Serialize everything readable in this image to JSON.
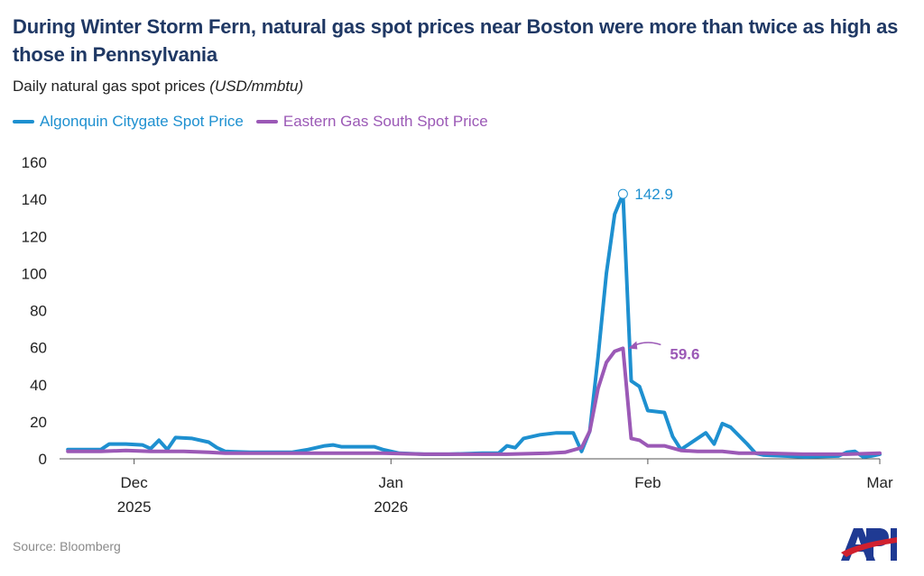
{
  "header": {
    "title": "During Winter Storm Fern, natural gas spot prices near Boston were more than twice as high as those in Pennsylvania",
    "subtitle": "Daily natural gas spot prices",
    "subtitle_unit": "(USD/mmbtu)"
  },
  "footer": {
    "source": "Source: Bloomberg",
    "logo_text": "API"
  },
  "colors": {
    "algonquin": "#1e90d0",
    "eastern": "#9b59b6",
    "axis": "#555555",
    "logo_blue": "#1f3a93",
    "logo_red": "#d0202e"
  },
  "chart_data": {
    "type": "line",
    "title": "During Winter Storm Fern, natural gas spot prices near Boston were more than twice as high as those in Pennsylvania",
    "ylim": [
      0,
      160
    ],
    "yticks": [
      0,
      20,
      40,
      60,
      80,
      100,
      120,
      140,
      160
    ],
    "x_range": [
      "2025-11-22",
      "2026-03-01"
    ],
    "xticks": [
      {
        "date": "2025-12-01",
        "label1": "Dec",
        "label2": "2025"
      },
      {
        "date": "2026-01-01",
        "label1": "Jan",
        "label2": "2026"
      },
      {
        "date": "2026-02-01",
        "label1": "Feb",
        "label2": ""
      },
      {
        "date": "2026-03-01",
        "label1": "Mar",
        "label2": ""
      }
    ],
    "grid": false,
    "legend_position": "top-left",
    "series": [
      {
        "name": "Algonquin Citygate Spot Price",
        "color": "#1e90d0",
        "points": [
          [
            "2025-11-23",
            5
          ],
          [
            "2025-11-27",
            5
          ],
          [
            "2025-11-28",
            8
          ],
          [
            "2025-11-30",
            8
          ],
          [
            "2025-12-02",
            7.5
          ],
          [
            "2025-12-03",
            5.5
          ],
          [
            "2025-12-04",
            10
          ],
          [
            "2025-12-05",
            5
          ],
          [
            "2025-12-06",
            11.5
          ],
          [
            "2025-12-08",
            11
          ],
          [
            "2025-12-10",
            9
          ],
          [
            "2025-12-11",
            6
          ],
          [
            "2025-12-12",
            4
          ],
          [
            "2025-12-15",
            3.5
          ],
          [
            "2025-12-20",
            3.5
          ],
          [
            "2025-12-22",
            5
          ],
          [
            "2025-12-24",
            7
          ],
          [
            "2025-12-25",
            7.5
          ],
          [
            "2025-12-26",
            6.5
          ],
          [
            "2025-12-30",
            6.5
          ],
          [
            "2025-12-31",
            5
          ],
          [
            "2026-01-02",
            3
          ],
          [
            "2026-01-05",
            2.5
          ],
          [
            "2026-01-08",
            2.5
          ],
          [
            "2026-01-12",
            3
          ],
          [
            "2026-01-14",
            3
          ],
          [
            "2026-01-15",
            7
          ],
          [
            "2026-01-16",
            6
          ],
          [
            "2026-01-17",
            11
          ],
          [
            "2026-01-19",
            13
          ],
          [
            "2026-01-21",
            14
          ],
          [
            "2026-01-23",
            14
          ],
          [
            "2026-01-24",
            4
          ],
          [
            "2026-01-25",
            15
          ],
          [
            "2026-01-26",
            55
          ],
          [
            "2026-01-27",
            100
          ],
          [
            "2026-01-28",
            132
          ],
          [
            "2026-01-29",
            142.9
          ],
          [
            "2026-01-30",
            42
          ],
          [
            "2026-01-31",
            39
          ],
          [
            "2026-02-01",
            26
          ],
          [
            "2026-02-03",
            25
          ],
          [
            "2026-02-04",
            12
          ],
          [
            "2026-02-05",
            5
          ],
          [
            "2026-02-06",
            8
          ],
          [
            "2026-02-08",
            14
          ],
          [
            "2026-02-09",
            8
          ],
          [
            "2026-02-10",
            19
          ],
          [
            "2026-02-11",
            17
          ],
          [
            "2026-02-13",
            8
          ],
          [
            "2026-02-14",
            3
          ],
          [
            "2026-02-15",
            2
          ],
          [
            "2026-02-20",
            1
          ],
          [
            "2026-02-24",
            1.5
          ],
          [
            "2026-02-25",
            3.5
          ],
          [
            "2026-02-26",
            4
          ],
          [
            "2026-02-27",
            1
          ],
          [
            "2026-02-28",
            1.5
          ],
          [
            "2026-03-01",
            2.5
          ]
        ]
      },
      {
        "name": "Eastern Gas South Spot Price",
        "color": "#9b59b6",
        "points": [
          [
            "2025-11-23",
            4
          ],
          [
            "2025-11-27",
            4
          ],
          [
            "2025-11-30",
            4.5
          ],
          [
            "2025-12-03",
            4
          ],
          [
            "2025-12-07",
            4
          ],
          [
            "2025-12-10",
            3.5
          ],
          [
            "2025-12-12",
            3
          ],
          [
            "2025-12-15",
            3
          ],
          [
            "2025-12-20",
            3
          ],
          [
            "2025-12-25",
            3
          ],
          [
            "2025-12-31",
            3
          ],
          [
            "2026-01-05",
            2.5
          ],
          [
            "2026-01-10",
            2.5
          ],
          [
            "2026-01-15",
            2.5
          ],
          [
            "2026-01-20",
            3
          ],
          [
            "2026-01-22",
            3.5
          ],
          [
            "2026-01-24",
            6
          ],
          [
            "2026-01-25",
            15
          ],
          [
            "2026-01-26",
            38
          ],
          [
            "2026-01-27",
            52
          ],
          [
            "2026-01-28",
            58
          ],
          [
            "2026-01-29",
            59.6
          ],
          [
            "2026-01-30",
            11
          ],
          [
            "2026-01-31",
            10
          ],
          [
            "2026-02-01",
            7
          ],
          [
            "2026-02-03",
            7
          ],
          [
            "2026-02-05",
            4.5
          ],
          [
            "2026-02-07",
            4
          ],
          [
            "2026-02-08",
            4
          ],
          [
            "2026-02-10",
            4
          ],
          [
            "2026-02-12",
            3
          ],
          [
            "2026-02-15",
            3
          ],
          [
            "2026-02-20",
            2.5
          ],
          [
            "2026-02-25",
            2.5
          ],
          [
            "2026-03-01",
            3
          ]
        ]
      }
    ],
    "annotations": [
      {
        "series": 0,
        "date": "2026-01-29",
        "value": 142.9,
        "label": "142.9"
      },
      {
        "series": 1,
        "date": "2026-01-29",
        "value": 59.6,
        "label": "59.6"
      }
    ]
  }
}
